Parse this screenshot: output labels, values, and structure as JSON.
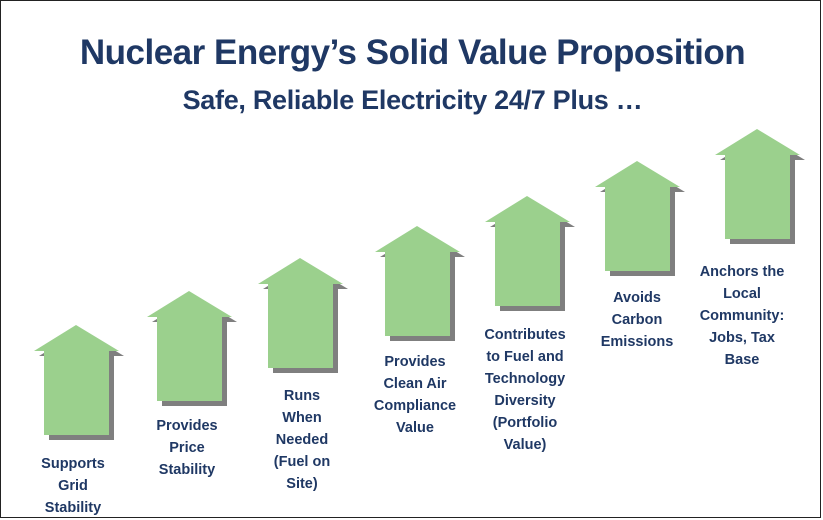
{
  "title": "Nuclear Energy’s Solid Value Proposition",
  "subtitle": "Safe, Reliable Electricity 24/7 Plus …",
  "colors": {
    "arrow_fill": "#9bd08d",
    "arrow_shadow": "#7f7f7f",
    "text": "#1f3864"
  },
  "steps": [
    {
      "label": "Supports Grid Stability",
      "lines": [
        "Supports",
        "Grid",
        "Stability"
      ]
    },
    {
      "label": "Provides Price Stability",
      "lines": [
        "Provides",
        "Price",
        "Stability"
      ]
    },
    {
      "label": "Runs When Needed (Fuel on Site)",
      "lines": [
        "Runs",
        "When",
        "Needed",
        "(Fuel on",
        "Site)"
      ]
    },
    {
      "label": "Provides Clean Air Compliance Value",
      "lines": [
        "Provides",
        "Clean Air",
        "Compliance",
        "Value"
      ]
    },
    {
      "label": "Contributes to Fuel and Technology Diversity (Portfolio Value)",
      "lines": [
        "Contributes",
        "to Fuel and",
        "Technology",
        "Diversity",
        "(Portfolio",
        "Value)"
      ]
    },
    {
      "label": "Avoids Carbon Emissions",
      "lines": [
        "Avoids",
        "Carbon",
        "Emissions"
      ]
    },
    {
      "label": "Anchors the Local Community: Jobs, Tax Base",
      "lines": [
        "Anchors the",
        "Local",
        "Community:",
        "Jobs, Tax",
        "Base"
      ]
    }
  ]
}
